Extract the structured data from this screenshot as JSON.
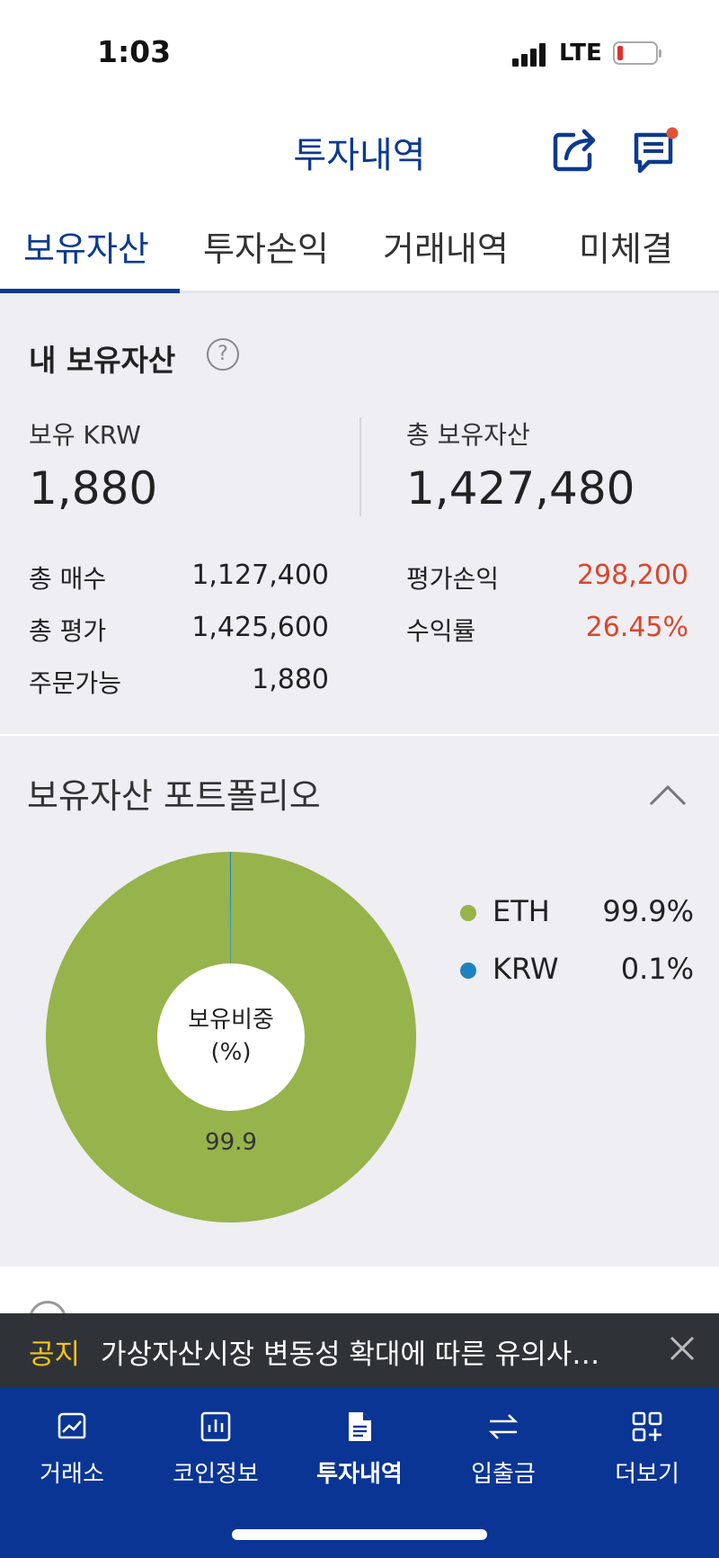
{
  "status_bar": {
    "time": "1:03",
    "network": "LTE"
  },
  "header": {
    "title": "투자내역"
  },
  "tabs": [
    {
      "label": "보유자산",
      "active": true
    },
    {
      "label": "투자손익",
      "active": false
    },
    {
      "label": "거래내역",
      "active": false
    },
    {
      "label": "미체결",
      "active": false
    }
  ],
  "summary": {
    "title": "내 보유자산",
    "help_symbol": "?",
    "krw_label": "보유 KRW",
    "krw_value": "1,880",
    "total_label": "총 보유자산",
    "total_value": "1,427,480",
    "rows_left": [
      {
        "label": "총 매수",
        "value": "1,127,400"
      },
      {
        "label": "총 평가",
        "value": "1,425,600"
      },
      {
        "label": "주문가능",
        "value": "1,880"
      }
    ],
    "rows_right": [
      {
        "label": "평가손익",
        "value": "298,200"
      },
      {
        "label": "수익률",
        "value": "26.45%"
      }
    ]
  },
  "portfolio": {
    "title": "보유자산 포트폴리오",
    "chart_data": {
      "type": "pie",
      "center_label": "보유비중",
      "center_unit": "(%)",
      "categories": [
        "ETH",
        "KRW"
      ],
      "values": [
        99.9,
        0.1
      ],
      "slice_label": "99.9",
      "colors": [
        "#97b34b",
        "#1f82c0"
      ]
    },
    "legend": [
      {
        "name": "ETH",
        "value": "99.9%",
        "color": "#97b34b"
      },
      {
        "name": "KRW",
        "value": "0.1%",
        "color": "#1f82c0"
      }
    ]
  },
  "notice": {
    "tag": "공지",
    "text": "가상자산시장 변동성 확대에 따른 유의사…"
  },
  "bottom_nav": [
    {
      "label": "거래소",
      "icon": "chart-line-icon",
      "active": false
    },
    {
      "label": "코인정보",
      "icon": "bar-chart-icon",
      "active": false
    },
    {
      "label": "투자내역",
      "icon": "document-icon",
      "active": true
    },
    {
      "label": "입출금",
      "icon": "transfer-arrows-icon",
      "active": false
    },
    {
      "label": "더보기",
      "icon": "grid-plus-icon",
      "active": false
    }
  ],
  "colors": {
    "brand": "#0b3a8f",
    "nav_bg": "#0a3594",
    "profit": "#d9472d",
    "notice_tag": "#f5c518"
  }
}
